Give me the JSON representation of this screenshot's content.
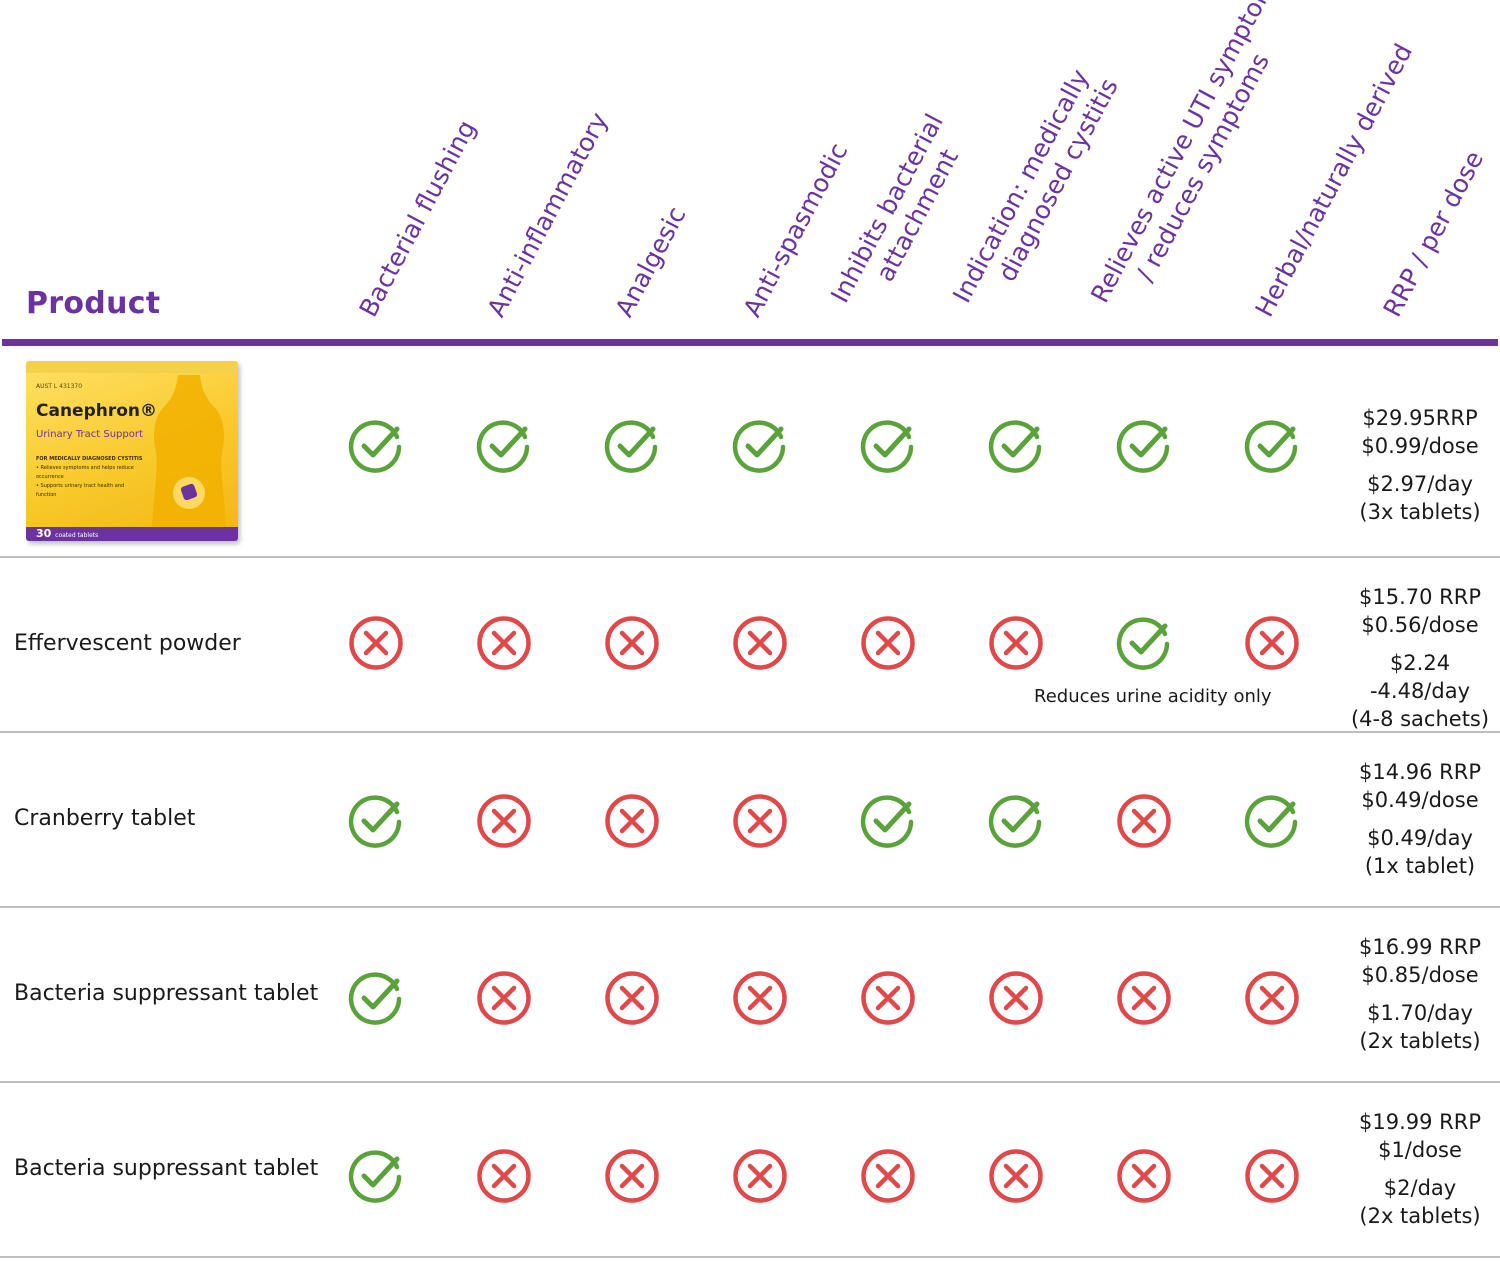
{
  "header": {
    "product_label": "Product",
    "columns": [
      {
        "line1": "Bacterial flushing",
        "line2": ""
      },
      {
        "line1": "Anti-inflammatory",
        "line2": ""
      },
      {
        "line1": "Analgesic",
        "line2": ""
      },
      {
        "line1": "Anti-spasmodic",
        "line2": ""
      },
      {
        "line1": "Inhibits bacterial",
        "line2": "attachment"
      },
      {
        "line1": "Indication: medically",
        "line2": "diagnosed cystitis"
      },
      {
        "line1": "Relieves active UTI symptoms",
        "line2": "/ reduces symptoms"
      },
      {
        "line1": "Herbal/naturally derived",
        "line2": ""
      },
      {
        "line1": "RRP / per dose",
        "line2": ""
      }
    ]
  },
  "canephron_box": {
    "brand": "Canephron®",
    "subtitle": "Urinary Tract Support",
    "aust": "AUST L 431370",
    "fine1": "FOR MEDICALLY DIAGNOSED CYSTITIS",
    "fine2": "• Relieves symptoms and helps reduce occurrence",
    "fine3": "• Supports urinary tract health and function",
    "count": "30",
    "count_label": "coated tablets"
  },
  "rows": [
    {
      "label": "",
      "marks": [
        "check",
        "check",
        "check",
        "check",
        "check",
        "check",
        "check",
        "check"
      ],
      "price": {
        "rrp": "$29.95RRP",
        "dose": "$0.99/dose",
        "day": "$2.97/day",
        "qty": "(3x tablets)"
      },
      "note": ""
    },
    {
      "label": "Effervescent powder",
      "marks": [
        "cross",
        "cross",
        "cross",
        "cross",
        "cross",
        "cross",
        "check",
        "cross"
      ],
      "price": {
        "rrp": "$15.70 RRP",
        "dose": "$0.56/dose",
        "day": "$2.24 -4.48/day",
        "qty": "(4-8 sachets)"
      },
      "note": "Reduces urine acidity only"
    },
    {
      "label": "Cranberry tablet",
      "marks": [
        "check",
        "cross",
        "cross",
        "cross",
        "check",
        "check",
        "cross",
        "check"
      ],
      "price": {
        "rrp": "$14.96 RRP",
        "dose": "$0.49/dose",
        "day": "$0.49/day",
        "qty": "(1x tablet)"
      },
      "note": ""
    },
    {
      "label": "Bacteria suppressant tablet",
      "marks": [
        "check",
        "cross",
        "cross",
        "cross",
        "cross",
        "cross",
        "cross",
        "cross"
      ],
      "price": {
        "rrp": "$16.99 RRP",
        "dose": "$0.85/dose",
        "day": "$1.70/day",
        "qty": "(2x tablets)"
      },
      "note": ""
    },
    {
      "label": "Bacteria suppressant tablet",
      "marks": [
        "check",
        "cross",
        "cross",
        "cross",
        "cross",
        "cross",
        "cross",
        "cross"
      ],
      "price": {
        "rrp": "$19.99 RRP",
        "dose": "$1/dose",
        "day": "$2/day",
        "qty": "(2x tablets)"
      },
      "note": ""
    }
  ],
  "colors": {
    "purple": "#6b33a0",
    "check": "#5aa33a",
    "cross": "#e0484a",
    "rule": "#bdbdbd"
  }
}
